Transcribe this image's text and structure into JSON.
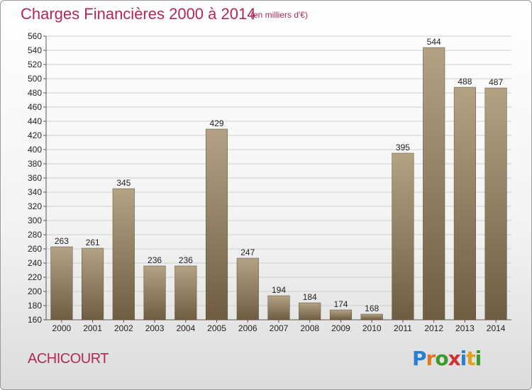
{
  "chart_data": {
    "type": "bar",
    "title": "Charges Financières 2000 à 2014",
    "subtitle": "(en milliers d'€)",
    "categories": [
      "2000",
      "2001",
      "2002",
      "2003",
      "2004",
      "2005",
      "2006",
      "2007",
      "2008",
      "2009",
      "2010",
      "2011",
      "2012",
      "2013",
      "2014"
    ],
    "values": [
      263,
      261,
      345,
      236,
      236,
      429,
      247,
      194,
      184,
      174,
      168,
      395,
      544,
      488,
      487
    ],
    "ylim": [
      160,
      560
    ],
    "ytick_step": 20,
    "grid": true,
    "bar_color": "#8b7a5e"
  },
  "footer": {
    "commune": "ACHICOURT",
    "logo": [
      "P",
      "r",
      "o",
      "x",
      "i",
      "t",
      "i"
    ],
    "logo_colors": [
      "#2a7fd0",
      "#e07820",
      "#3a9a2a",
      "#d03030",
      "#2a7fd0",
      "#e0a020",
      "#3a9a2a"
    ]
  }
}
